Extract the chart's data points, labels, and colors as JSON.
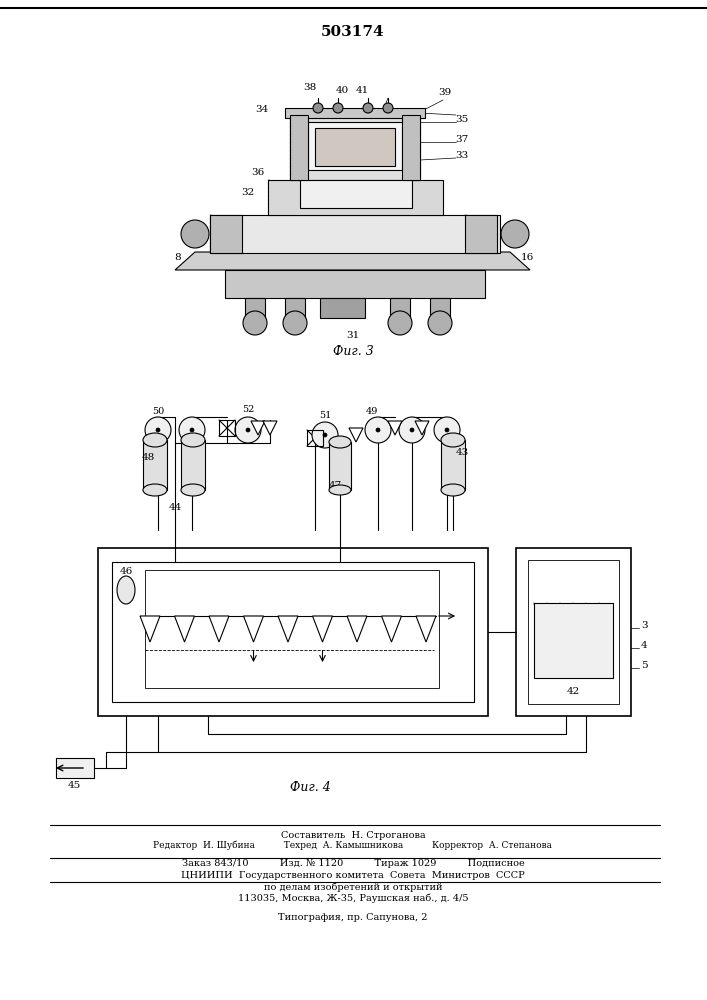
{
  "title": "503174",
  "title_fontsize": 11,
  "bg_color": "#ffffff",
  "line_color": "#000000",
  "fig3_label": "Фиг. 3",
  "fig4_label": "Фиг. 4",
  "footer_lines": [
    "Составитель  Н. Строганова",
    "Редактор  И. Шубина          Техред  А. Камышникова          Корректор  А. Степанова",
    "Заказ 843/10          Изд. № 1120          Тираж 1029          Подписное",
    "ЦНИИПИ  Государственного комитета  Совета  Министров  СССР",
    "по делам изобретений и открытий",
    "113035, Москва, Ж-35, Раушская наб., д. 4/5",
    "Типография, пр. Сапунова, 2"
  ]
}
